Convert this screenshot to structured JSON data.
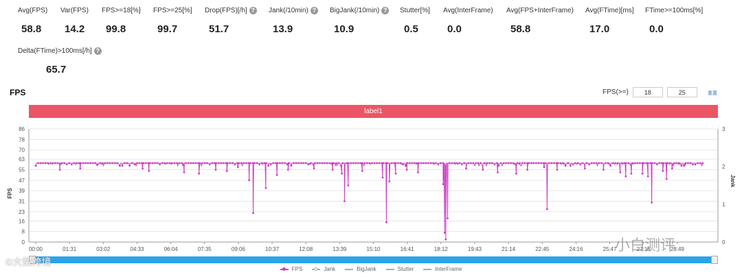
{
  "stats": [
    {
      "label": "Avg(FPS)",
      "value": "58.8",
      "help": false
    },
    {
      "label": "Var(FPS)",
      "value": "14.2",
      "help": false
    },
    {
      "label": "FPS>=18[%]",
      "value": "99.8",
      "help": false
    },
    {
      "label": "FPS>=25[%]",
      "value": "99.7",
      "help": false
    },
    {
      "label": "Drop(FPS)[/h]",
      "value": "51.7",
      "help": true
    },
    {
      "label": "Jank(/10min)",
      "value": "13.9",
      "help": true
    },
    {
      "label": "BigJank(/10min)",
      "value": "10.9",
      "help": true
    },
    {
      "label": "Stutter[%]",
      "value": "0.5",
      "help": false
    },
    {
      "label": "Avg(InterFrame)",
      "value": "0.0",
      "help": false
    },
    {
      "label": "Avg(FPS+InterFrame)",
      "value": "58.8",
      "help": false
    },
    {
      "label": "Avg(FTime)[ms]",
      "value": "17.0",
      "help": false
    },
    {
      "label": "FTime>=100ms[%]",
      "value": "0.0",
      "help": false
    },
    {
      "label": "Delta(FTime)>100ms[/h]",
      "value": "65.7",
      "help": true
    }
  ],
  "help_glyph": "?",
  "chart_header": {
    "title": "FPS",
    "threshold_label": "FPS(>=)",
    "threshold_1": "18",
    "threshold_2": "25",
    "reset_label": "重置"
  },
  "label_bar": {
    "text": "label1",
    "color": "#ec5566"
  },
  "legend": [
    {
      "name": "FPS",
      "color": "#cc3fc4",
      "active": true
    },
    {
      "name": "Jank",
      "color": "#aaaaaa",
      "active": false
    },
    {
      "name": "BigJank",
      "color": "#aaaaaa",
      "active": false
    },
    {
      "name": "Stutter",
      "color": "#aaaaaa",
      "active": false
    },
    {
      "name": "InterFrame",
      "color": "#aaaaaa",
      "active": false
    }
  ],
  "watermarks": {
    "left": "©大数跨境",
    "right": "小白测评"
  },
  "chart_data": {
    "type": "line",
    "ylabel": "FPS",
    "y2label": "Jank",
    "y_ticks": [
      0,
      8,
      16,
      23,
      31,
      39,
      47,
      55,
      63,
      70,
      78,
      86
    ],
    "ylim": [
      0,
      86
    ],
    "y2_ticks": [
      0,
      1,
      2,
      3
    ],
    "y2lim": [
      0,
      3
    ],
    "x_ticks": [
      "00:00",
      "01:31",
      "03:02",
      "04:33",
      "06:04",
      "07:35",
      "09:06",
      "10:37",
      "12:08",
      "13:39",
      "15:10",
      "16:41",
      "18:12",
      "19:43",
      "21:14",
      "22:45",
      "24:16",
      "25:47",
      "27:18",
      "28:49"
    ],
    "x_range_seconds": [
      0,
      1820
    ],
    "baseline_fps": 60,
    "dips": [
      {
        "time": "01:05",
        "fps": 55
      },
      {
        "time": "02:00",
        "fps": 56
      },
      {
        "time": "04:48",
        "fps": 56
      },
      {
        "time": "05:05",
        "fps": 54
      },
      {
        "time": "06:40",
        "fps": 53
      },
      {
        "time": "07:20",
        "fps": 52
      },
      {
        "time": "08:05",
        "fps": 55
      },
      {
        "time": "08:35",
        "fps": 54
      },
      {
        "time": "09:05",
        "fps": 57
      },
      {
        "time": "09:35",
        "fps": 47
      },
      {
        "time": "09:46",
        "fps": 22
      },
      {
        "time": "10:20",
        "fps": 41
      },
      {
        "time": "10:50",
        "fps": 51
      },
      {
        "time": "11:20",
        "fps": 55
      },
      {
        "time": "12:30",
        "fps": 56
      },
      {
        "time": "13:20",
        "fps": 55
      },
      {
        "time": "13:45",
        "fps": 52
      },
      {
        "time": "13:52",
        "fps": 31
      },
      {
        "time": "14:02",
        "fps": 43
      },
      {
        "time": "14:40",
        "fps": 54
      },
      {
        "time": "15:35",
        "fps": 49
      },
      {
        "time": "15:45",
        "fps": 15
      },
      {
        "time": "15:53",
        "fps": 46
      },
      {
        "time": "16:10",
        "fps": 52
      },
      {
        "time": "16:40",
        "fps": 55
      },
      {
        "time": "17:10",
        "fps": 53
      },
      {
        "time": "18:18",
        "fps": 44
      },
      {
        "time": "18:22",
        "fps": 7
      },
      {
        "time": "18:25",
        "fps": 2
      },
      {
        "time": "18:30",
        "fps": 18
      },
      {
        "time": "19:20",
        "fps": 56
      },
      {
        "time": "20:05",
        "fps": 55
      },
      {
        "time": "20:45",
        "fps": 53
      },
      {
        "time": "21:35",
        "fps": 52
      },
      {
        "time": "22:05",
        "fps": 55
      },
      {
        "time": "22:50",
        "fps": 57
      },
      {
        "time": "22:58",
        "fps": 25
      },
      {
        "time": "23:25",
        "fps": 55
      },
      {
        "time": "24:40",
        "fps": 56
      },
      {
        "time": "25:30",
        "fps": 55
      },
      {
        "time": "26:15",
        "fps": 53
      },
      {
        "time": "26:30",
        "fps": 50
      },
      {
        "time": "26:45",
        "fps": 52
      },
      {
        "time": "27:15",
        "fps": 52
      },
      {
        "time": "27:30",
        "fps": 50
      },
      {
        "time": "27:40",
        "fps": 30
      },
      {
        "time": "28:10",
        "fps": 54
      },
      {
        "time": "28:20",
        "fps": 48
      },
      {
        "time": "28:35",
        "fps": 56
      },
      {
        "time": "29:10",
        "fps": 58
      }
    ]
  }
}
